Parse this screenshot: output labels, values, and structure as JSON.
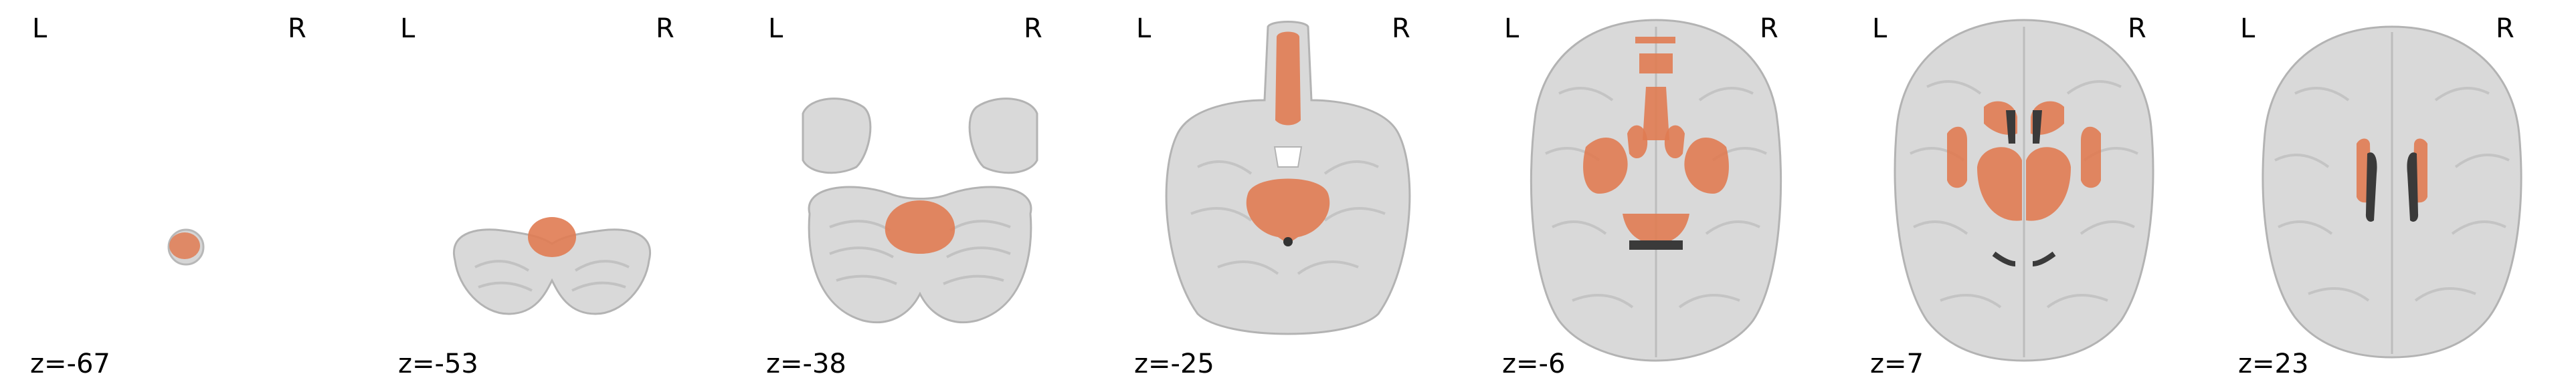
{
  "colors": {
    "overlay": "#e07b52",
    "brain_fill": "#d9d9d9",
    "brain_edge": "#b3b3b3",
    "ventricle": "#4a4a4a",
    "background": "#ffffff"
  },
  "orientation": {
    "left": "L",
    "right": "R"
  },
  "slices": [
    {
      "z_label": "z=-67",
      "view": "axial"
    },
    {
      "z_label": "z=-53",
      "view": "axial"
    },
    {
      "z_label": "z=-38",
      "view": "axial"
    },
    {
      "z_label": "z=-25",
      "view": "axial"
    },
    {
      "z_label": "z=-6",
      "view": "axial"
    },
    {
      "z_label": "z=7",
      "view": "axial"
    },
    {
      "z_label": "z=23",
      "view": "axial"
    }
  ]
}
